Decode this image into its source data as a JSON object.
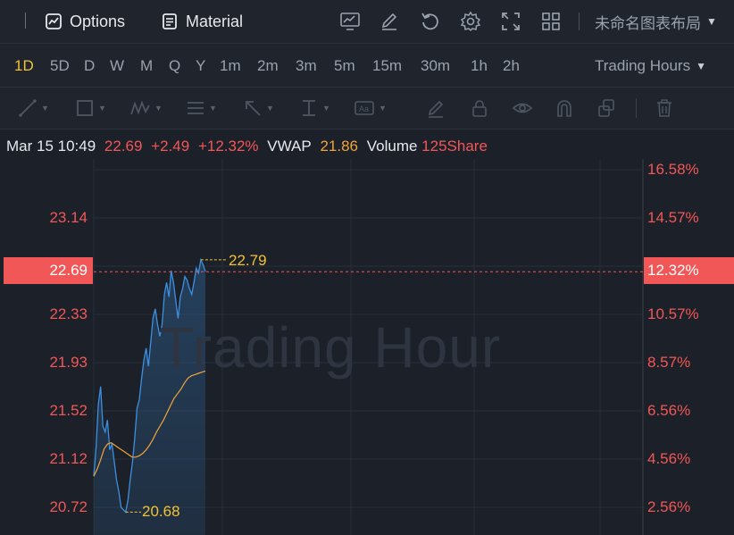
{
  "toolbar": {
    "options_label": "Options",
    "material_label": "Material",
    "layout_name": "未命名图表布局"
  },
  "periods": [
    "1D",
    "5D",
    "D",
    "W",
    "M",
    "Q",
    "Y",
    "1m",
    "2m",
    "3m",
    "5m",
    "15m",
    "30m",
    "1h",
    "2h"
  ],
  "active_period": "1D",
  "trading_hours_label": "Trading Hours",
  "info": {
    "datetime": "Mar 15 10:49",
    "price": "22.69",
    "change": "+2.49",
    "change_pct": "+12.32%",
    "vwap_label": "VWAP",
    "vwap_value": "21.86",
    "volume_label": "Volume",
    "volume_value": "125Share"
  },
  "axis": {
    "left_ticks": [
      "23.14",
      "22.33",
      "21.93",
      "21.52",
      "21.12",
      "20.72"
    ],
    "right_ticks": [
      "16.58%",
      "14.57%",
      "10.57%",
      "8.57%",
      "6.56%",
      "4.56%",
      "2.56%"
    ],
    "current_price": "22.69",
    "current_pct": "12.32%"
  },
  "markers": {
    "high": "22.79",
    "low": "20.68"
  },
  "watermark": "Trading Hour",
  "colors": {
    "up": "#f25757",
    "price_line": "#3d8fe0",
    "vwap_line": "#f0a43a",
    "accent": "#f1c232"
  },
  "series": {
    "price": [
      20.98,
      21.22,
      21.58,
      21.73,
      21.4,
      21.35,
      21.45,
      21.2,
      21.25,
      21.1,
      20.95,
      20.85,
      20.72,
      20.7,
      20.68,
      20.78,
      20.95,
      21.1,
      21.3,
      21.55,
      21.62,
      21.8,
      21.95,
      22.05,
      21.9,
      22.1,
      22.3,
      22.38,
      22.25,
      22.15,
      22.25,
      22.5,
      22.6,
      22.48,
      22.7,
      22.6,
      22.45,
      22.3,
      22.48,
      22.55,
      22.65,
      22.62,
      22.55,
      22.5,
      22.6,
      22.72,
      22.68,
      22.79,
      22.75,
      22.69
    ],
    "vwap": [
      20.98,
      21.04,
      21.12,
      21.21,
      21.25,
      21.26,
      21.24,
      21.22,
      21.2,
      21.18,
      21.16,
      21.14,
      21.14,
      21.15,
      21.17,
      21.2,
      21.24,
      21.29,
      21.35,
      21.4,
      21.45,
      21.51,
      21.57,
      21.63,
      21.67,
      21.71,
      21.76,
      21.8,
      21.82,
      21.83,
      21.84,
      21.85,
      21.86
    ]
  }
}
